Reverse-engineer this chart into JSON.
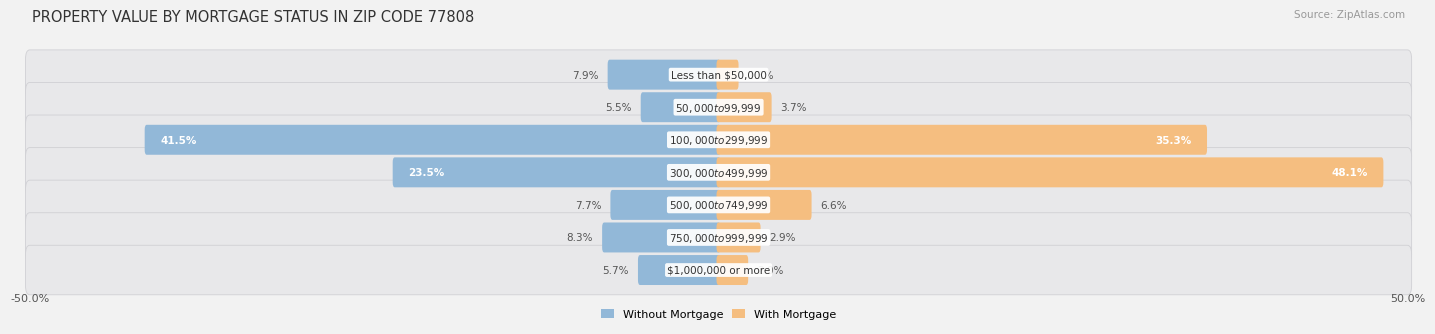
{
  "title": "PROPERTY VALUE BY MORTGAGE STATUS IN ZIP CODE 77808",
  "source": "Source: ZipAtlas.com",
  "categories": [
    "Less than $50,000",
    "$50,000 to $99,999",
    "$100,000 to $299,999",
    "$300,000 to $499,999",
    "$500,000 to $749,999",
    "$750,000 to $999,999",
    "$1,000,000 or more"
  ],
  "without_mortgage": [
    7.9,
    5.5,
    41.5,
    23.5,
    7.7,
    8.3,
    5.7
  ],
  "with_mortgage": [
    1.3,
    3.7,
    35.3,
    48.1,
    6.6,
    2.9,
    2.0
  ],
  "bar_color_left": "#92b8d8",
  "bar_color_right": "#f5be80",
  "background_color": "#f2f2f2",
  "row_bg_color": "#e8e8ea",
  "row_border_color": "#d0d0d4",
  "xlim": [
    -50,
    50
  ],
  "xtick_left": "-50.0%",
  "xtick_right": "50.0%",
  "legend_label_left": "Without Mortgage",
  "legend_label_right": "With Mortgage",
  "title_fontsize": 10.5,
  "source_fontsize": 7.5,
  "bar_label_fontsize": 7.5,
  "category_label_fontsize": 7.5,
  "bar_height": 0.62
}
